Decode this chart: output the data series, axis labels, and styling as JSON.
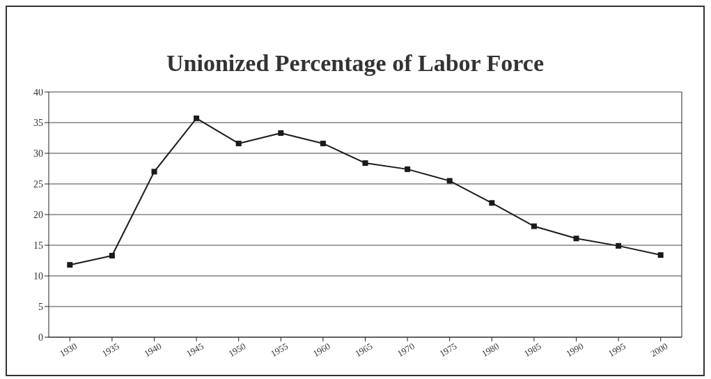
{
  "chart_data": {
    "type": "line",
    "title": "Unionized Percentage of Labor Force",
    "categories": [
      "1930",
      "1935",
      "1940",
      "1945",
      "1950",
      "1955",
      "1960",
      "1965",
      "1970",
      "1975",
      "1980",
      "1985",
      "1990",
      "1995",
      "2000"
    ],
    "series": [
      {
        "color": "#1a1a1a",
        "values": [
          11.8,
          13.3,
          27.0,
          35.7,
          31.6,
          33.3,
          31.6,
          28.4,
          27.4,
          25.5,
          21.9,
          18.1,
          16.1,
          14.9,
          13.4
        ]
      }
    ],
    "ylim": [
      0,
      40
    ],
    "yticks": [
      0,
      5,
      10,
      15,
      20,
      25,
      30,
      35,
      40
    ],
    "grid": "y",
    "marker": "square",
    "line_style": "solid"
  }
}
